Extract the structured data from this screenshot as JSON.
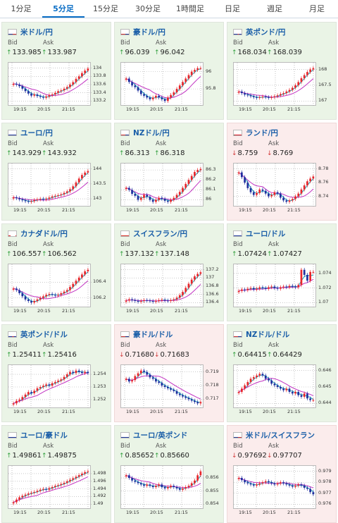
{
  "tabs": [
    {
      "label": "1分足",
      "active": false
    },
    {
      "label": "5分足",
      "active": true
    },
    {
      "label": "15分足",
      "active": false
    },
    {
      "label": "30分足",
      "active": false
    },
    {
      "label": "1時間足",
      "active": false
    },
    {
      "label": "日足",
      "active": false
    },
    {
      "label": "週足",
      "active": false
    },
    {
      "label": "月足",
      "active": false
    }
  ],
  "labels": {
    "bid": "Bid",
    "ask": "Ask"
  },
  "colors": {
    "up_bg": "#eaf4e6",
    "down_bg": "#fbecec",
    "candle_up": "#e8262b",
    "candle_down": "#1f2f9e",
    "ma_short": "#17a2b8",
    "ma_long": "#c233c2"
  },
  "pairs": [
    {
      "name": "米ドル/円",
      "flag": "us-flag-icon",
      "trend": "up",
      "bid": "133.985",
      "ask": "133.987",
      "chart_data": {
        "type": "candlestick",
        "yticks": [
          "134",
          "133.8",
          "133.6",
          "133.4",
          "133.2"
        ],
        "xticks": [
          "19:15",
          "20:15",
          "21:15"
        ],
        "close": [
          133.62,
          133.6,
          133.56,
          133.5,
          133.44,
          133.38,
          133.33,
          133.36,
          133.32,
          133.3,
          133.28,
          133.31,
          133.34,
          133.36,
          133.4,
          133.44,
          133.46,
          133.5,
          133.54,
          133.6,
          133.66,
          133.74,
          133.8,
          133.88,
          133.94,
          133.99
        ]
      }
    },
    {
      "name": "豪ドル/円",
      "flag": "au-flag-icon",
      "trend": "up",
      "bid": "96.039",
      "ask": "96.042",
      "chart_data": {
        "type": "candlestick",
        "yticks": [
          "96",
          "95.8"
        ],
        "xticks": [
          "19:15",
          "20:15",
          "21:15"
        ],
        "close": [
          95.92,
          95.88,
          95.84,
          95.82,
          95.78,
          95.74,
          95.72,
          95.7,
          95.68,
          95.7,
          95.72,
          95.7,
          95.68,
          95.66,
          95.7,
          95.73,
          95.76,
          95.8,
          95.84,
          95.88,
          95.92,
          95.96,
          96.0,
          96.02,
          96.04,
          96.04
        ]
      }
    },
    {
      "name": "英ポンド/円",
      "flag": "gb-flag-icon",
      "trend": "up",
      "bid": "168.034",
      "ask": "168.039",
      "chart_data": {
        "type": "candlestick",
        "yticks": [
          "168",
          "167.5",
          "167"
        ],
        "xticks": [
          "19:15",
          "20:15",
          "21:15"
        ],
        "close": [
          167.3,
          167.25,
          167.2,
          167.18,
          167.15,
          167.12,
          167.1,
          167.12,
          167.14,
          167.12,
          167.1,
          167.12,
          167.15,
          167.18,
          167.22,
          167.25,
          167.3,
          167.35,
          167.42,
          167.5,
          167.6,
          167.72,
          167.82,
          167.92,
          168.0,
          168.04
        ]
      }
    },
    {
      "name": "ユーロ/円",
      "flag": "eu-flag-icon",
      "trend": "up",
      "bid": "143.929",
      "ask": "143.932",
      "chart_data": {
        "type": "candlestick",
        "yticks": [
          "144",
          "143.5",
          "143"
        ],
        "xticks": [
          "19:15",
          "20:15",
          "21:15"
        ],
        "close": [
          143.05,
          143.02,
          142.98,
          142.95,
          142.92,
          142.9,
          142.92,
          142.96,
          142.98,
          143.0,
          142.98,
          143.0,
          143.04,
          143.08,
          143.1,
          143.12,
          143.15,
          143.2,
          143.25,
          143.32,
          143.42,
          143.55,
          143.68,
          143.8,
          143.88,
          143.93
        ]
      }
    },
    {
      "name": "NZドル/円",
      "flag": "nz-flag-icon",
      "trend": "up",
      "bid": "86.313",
      "ask": "86.318",
      "chart_data": {
        "type": "candlestick",
        "yticks": [
          "86.3",
          "86.2",
          "86.1",
          "86"
        ],
        "xticks": [
          "19:15",
          "20:15",
          "21:15"
        ],
        "close": [
          86.12,
          86.1,
          86.06,
          86.04,
          86.0,
          86.02,
          86.05,
          86.03,
          86.0,
          85.98,
          86.0,
          86.02,
          86.01,
          85.99,
          85.98,
          86.0,
          86.02,
          86.05,
          86.08,
          86.12,
          86.16,
          86.2,
          86.24,
          86.28,
          86.3,
          86.31
        ]
      }
    },
    {
      "name": "ランド/円",
      "flag": "za-flag-icon",
      "trend": "down",
      "bid": "8.759",
      "ask": "8.769",
      "chart_data": {
        "type": "candlestick",
        "yticks": [
          "8.78",
          "8.76",
          "8.74"
        ],
        "xticks": [
          "19:15",
          "20:15",
          "21:15"
        ],
        "close": [
          8.775,
          8.768,
          8.76,
          8.752,
          8.746,
          8.742,
          8.745,
          8.75,
          8.748,
          8.744,
          8.74,
          8.742,
          8.746,
          8.744,
          8.738,
          8.734,
          8.732,
          8.734,
          8.736,
          8.74,
          8.744,
          8.75,
          8.756,
          8.762,
          8.766,
          8.769
        ]
      }
    },
    {
      "name": "カナダドル/円",
      "flag": "ca-flag-icon",
      "trend": "up",
      "bid": "106.557",
      "ask": "106.562",
      "chart_data": {
        "type": "candlestick",
        "yticks": [
          "106.4",
          "106.2"
        ],
        "xticks": [
          "19:15",
          "20:15",
          "21:15"
        ],
        "close": [
          106.32,
          106.3,
          106.26,
          106.22,
          106.18,
          106.16,
          106.14,
          106.16,
          106.18,
          106.2,
          106.22,
          106.24,
          106.25,
          106.24,
          106.23,
          106.24,
          106.26,
          106.28,
          106.3,
          106.34,
          106.38,
          106.42,
          106.46,
          106.5,
          106.54,
          106.56
        ]
      }
    },
    {
      "name": "スイスフラン/円",
      "flag": "ch-flag-icon",
      "trend": "up",
      "bid": "137.132",
      "ask": "137.148",
      "chart_data": {
        "type": "candlestick",
        "yticks": [
          "137.2",
          "137",
          "136.8",
          "136.6",
          "136.4"
        ],
        "xticks": [
          "19:15",
          "20:15",
          "21:15"
        ],
        "close": [
          136.45,
          136.48,
          136.46,
          136.44,
          136.42,
          136.44,
          136.46,
          136.45,
          136.44,
          136.42,
          136.44,
          136.46,
          136.47,
          136.45,
          136.44,
          136.46,
          136.48,
          136.52,
          136.58,
          136.66,
          136.76,
          136.86,
          136.96,
          137.04,
          137.1,
          137.14
        ]
      }
    },
    {
      "name": "ユーロ/ドル",
      "flag": "eu-us-flag-icon",
      "trend": "up",
      "bid": "1.07424",
      "ask": "1.07427",
      "chart_data": {
        "type": "candlestick",
        "yticks": [
          "1.074",
          "1.072",
          "1.07"
        ],
        "xticks": [
          "19:15",
          "20:15",
          "21:15"
        ],
        "close": [
          1.0716,
          1.0718,
          1.0717,
          1.0719,
          1.072,
          1.0718,
          1.0719,
          1.0721,
          1.072,
          1.0719,
          1.0721,
          1.0722,
          1.072,
          1.0719,
          1.0721,
          1.0722,
          1.0721,
          1.0723,
          1.0722,
          1.0721,
          1.0724,
          1.0745,
          1.0738,
          1.073,
          1.0742,
          1.0742
        ]
      }
    },
    {
      "name": "英ポンド/ドル",
      "flag": "gb-us-flag-icon",
      "trend": "up",
      "bid": "1.25411",
      "ask": "1.25416",
      "chart_data": {
        "type": "candlestick",
        "yticks": [
          "1.254",
          "1.253",
          "1.252"
        ],
        "xticks": [
          "19:15",
          "20:15",
          "21:15"
        ],
        "close": [
          1.2517,
          1.2519,
          1.252,
          1.2522,
          1.2524,
          1.2526,
          1.2525,
          1.2527,
          1.2529,
          1.253,
          1.2531,
          1.2532,
          1.2531,
          1.2533,
          1.2534,
          1.2535,
          1.2536,
          1.2538,
          1.254,
          1.2542,
          1.2541,
          1.2543,
          1.2542,
          1.2541,
          1.2542,
          1.2541
        ]
      }
    },
    {
      "name": "豪ドル/ドル",
      "flag": "au-us-flag-icon",
      "trend": "down",
      "bid": "0.71680",
      "ask": "0.71683",
      "chart_data": {
        "type": "candlestick",
        "yticks": [
          "0.719",
          "0.718",
          "0.717"
        ],
        "xticks": [
          "19:15",
          "20:15",
          "21:15"
        ],
        "close": [
          0.7185,
          0.7183,
          0.7184,
          0.7187,
          0.7189,
          0.7191,
          0.719,
          0.7188,
          0.7186,
          0.7185,
          0.7183,
          0.7182,
          0.718,
          0.7179,
          0.7178,
          0.7177,
          0.7176,
          0.7174,
          0.7173,
          0.7172,
          0.7171,
          0.717,
          0.7169,
          0.7168,
          0.7167,
          0.7168
        ]
      }
    },
    {
      "name": "NZドル/ドル",
      "flag": "nz-us-flag-icon",
      "trend": "up",
      "bid": "0.64415",
      "ask": "0.64429",
      "chart_data": {
        "type": "candlestick",
        "yticks": [
          "0.646",
          "0.645",
          "0.644"
        ],
        "xticks": [
          "19:15",
          "20:15",
          "21:15"
        ],
        "close": [
          0.6447,
          0.6449,
          0.6451,
          0.6453,
          0.6455,
          0.6456,
          0.6457,
          0.6458,
          0.6457,
          0.6455,
          0.6454,
          0.6452,
          0.6451,
          0.645,
          0.6449,
          0.6448,
          0.6449,
          0.6447,
          0.6446,
          0.6447,
          0.6445,
          0.6444,
          0.6446,
          0.6443,
          0.6442,
          0.6442
        ]
      }
    },
    {
      "name": "ユーロ/豪ドル",
      "flag": "eu-au-flag-icon",
      "trend": "up",
      "bid": "1.49861",
      "ask": "1.49875",
      "chart_data": {
        "type": "candlestick",
        "yticks": [
          "1.498",
          "1.496",
          "1.494",
          "1.492",
          "1.49"
        ],
        "xticks": [
          "19:15",
          "20:15",
          "21:15"
        ],
        "close": [
          1.4905,
          1.4912,
          1.4918,
          1.4922,
          1.4925,
          1.4928,
          1.493,
          1.4932,
          1.4935,
          1.4938,
          1.494,
          1.4938,
          1.4942,
          1.4945,
          1.4948,
          1.495,
          1.4953,
          1.4956,
          1.496,
          1.4964,
          1.4968,
          1.4972,
          1.4976,
          1.498,
          1.4984,
          1.4986
        ]
      }
    },
    {
      "name": "ユーロ/英ポンド",
      "flag": "eu-gb-flag-icon",
      "trend": "up",
      "bid": "0.85652",
      "ask": "0.85660",
      "chart_data": {
        "type": "candlestick",
        "yticks": [
          "0.856",
          "0.855",
          "0.854"
        ],
        "xticks": [
          "19:15",
          "20:15",
          "21:15"
        ],
        "close": [
          0.8562,
          0.856,
          0.8558,
          0.8557,
          0.8556,
          0.8555,
          0.8554,
          0.8555,
          0.8554,
          0.8553,
          0.8554,
          0.8555,
          0.8553,
          0.8552,
          0.8553,
          0.8554,
          0.8553,
          0.8552,
          0.8551,
          0.8552,
          0.8553,
          0.8554,
          0.8556,
          0.8558,
          0.8562,
          0.8565
        ]
      }
    },
    {
      "name": "米ドル/スイスフラン",
      "flag": "us-ch-flag-icon",
      "trend": "down",
      "bid": "0.97692",
      "ask": "0.97707",
      "chart_data": {
        "type": "candlestick",
        "yticks": [
          "0.979",
          "0.978",
          "0.977",
          "0.976"
        ],
        "xticks": [
          "19:15",
          "20:15",
          "21:15"
        ],
        "close": [
          0.9784,
          0.9782,
          0.978,
          0.9779,
          0.9778,
          0.9777,
          0.9778,
          0.9779,
          0.978,
          0.9781,
          0.978,
          0.9779,
          0.9778,
          0.9779,
          0.978,
          0.9779,
          0.9778,
          0.9777,
          0.9776,
          0.9777,
          0.9778,
          0.9777,
          0.9775,
          0.9774,
          0.9771,
          0.9769
        ]
      }
    }
  ]
}
